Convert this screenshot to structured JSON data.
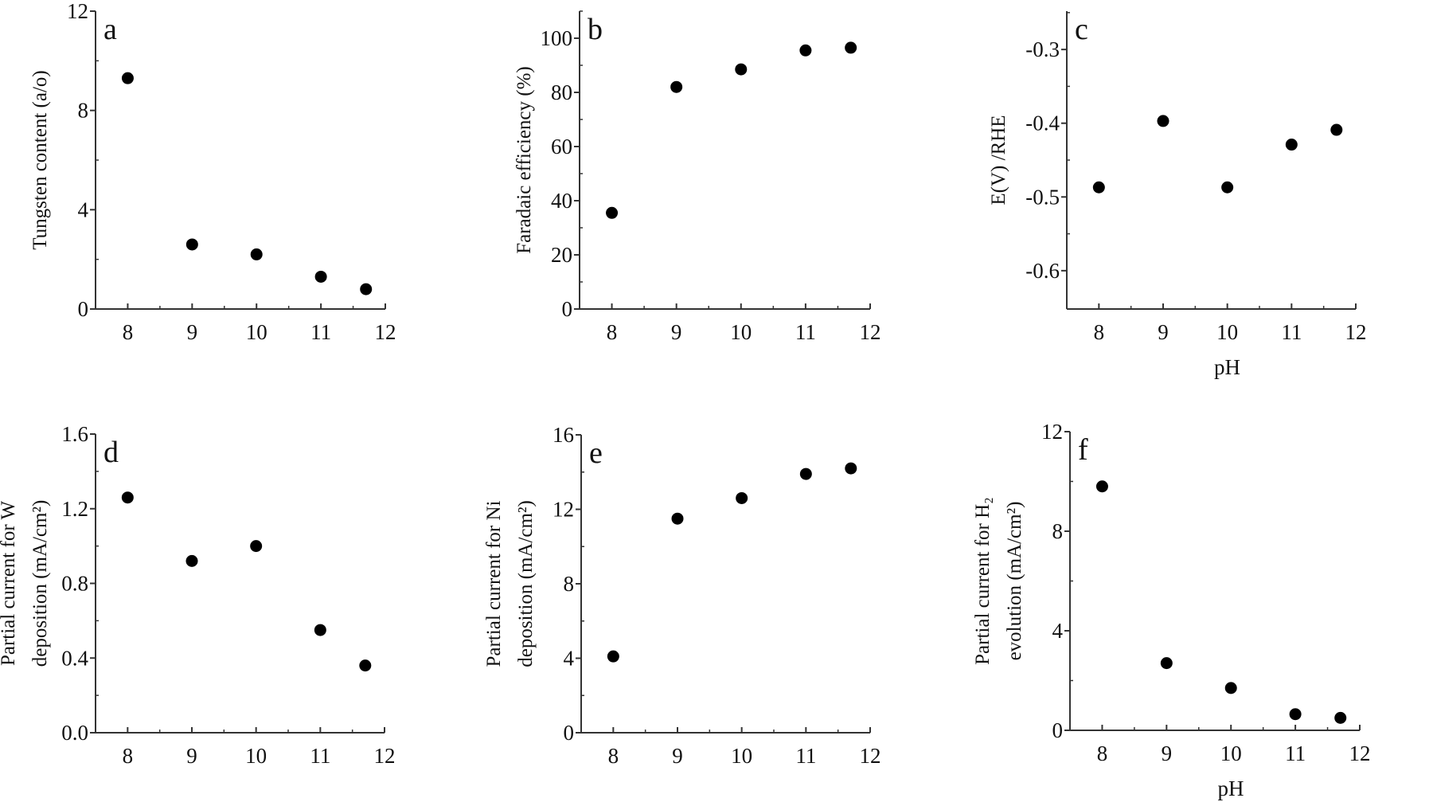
{
  "chart_data": [
    {
      "panel": "a",
      "type": "scatter",
      "xlabel": "",
      "ylabel": [
        "Tungsten content (a/o)"
      ],
      "xlim": [
        7.5,
        12
      ],
      "ylim": [
        0,
        12
      ],
      "xticks": [
        8,
        9,
        10,
        11,
        12
      ],
      "yticks": [
        "0",
        "4",
        "8",
        "12"
      ],
      "ytick_values": [
        0,
        4,
        8,
        12
      ],
      "yminor": 2,
      "x": [
        8,
        9,
        10,
        11,
        11.7
      ],
      "y": [
        9.3,
        2.6,
        2.2,
        1.3,
        0.8
      ]
    },
    {
      "panel": "b",
      "type": "scatter",
      "xlabel": "",
      "ylabel": [
        "Faradaic efficiency (%)"
      ],
      "xlim": [
        7.5,
        12
      ],
      "ylim": [
        0,
        110
      ],
      "xticks": [
        8,
        9,
        10,
        11,
        12
      ],
      "yticks": [
        "0",
        "20",
        "40",
        "60",
        "80",
        "100"
      ],
      "ytick_values": [
        0,
        20,
        40,
        60,
        80,
        100
      ],
      "yminor": 10,
      "x": [
        8,
        9,
        10,
        11,
        11.7
      ],
      "y": [
        35.5,
        82,
        88.5,
        95.5,
        96.5
      ]
    },
    {
      "panel": "c",
      "type": "scatter",
      "xlabel": "pH",
      "ylabel": [
        "E(V)  /RHE"
      ],
      "xlim": [
        7.5,
        12
      ],
      "ylim": [
        -0.652,
        -0.248
      ],
      "xticks": [
        8,
        9,
        10,
        11,
        12
      ],
      "yticks": [
        "-0.6",
        "-0.5",
        "-0.4",
        "-0.3"
      ],
      "ytick_values": [
        -0.6,
        -0.5,
        -0.4,
        -0.3
      ],
      "yminor": 0.05,
      "x": [
        8,
        9,
        10,
        11,
        11.7
      ],
      "y": [
        -0.487,
        -0.397,
        -0.487,
        -0.429,
        -0.409
      ]
    },
    {
      "panel": "d",
      "type": "scatter",
      "xlabel": "",
      "ylabel": [
        "Partial current for W",
        "deposition (mA/cm²)"
      ],
      "xlim": [
        7.5,
        12
      ],
      "ylim": [
        0,
        1.6
      ],
      "xticks": [
        8,
        9,
        10,
        11,
        12
      ],
      "yticks": [
        "0.0",
        "0.4",
        "0.8",
        "1.2",
        "1.6"
      ],
      "ytick_values": [
        0,
        0.4,
        0.8,
        1.2,
        1.6
      ],
      "yminor": 0.2,
      "x": [
        8,
        9,
        10,
        11,
        11.7
      ],
      "y": [
        1.26,
        0.92,
        1.0,
        0.55,
        0.36
      ]
    },
    {
      "panel": "e",
      "type": "scatter",
      "xlabel": "",
      "ylabel": [
        "Partial current for Ni",
        "deposition (mA/cm²)"
      ],
      "xlim": [
        7.5,
        12
      ],
      "ylim": [
        0,
        16
      ],
      "xticks": [
        8,
        9,
        10,
        11,
        12
      ],
      "yticks": [
        "0",
        "4",
        "8",
        "12",
        "16"
      ],
      "ytick_values": [
        0,
        4,
        8,
        12,
        16
      ],
      "yminor": 2,
      "x": [
        8,
        9,
        10,
        11,
        11.7
      ],
      "y": [
        4.1,
        11.5,
        12.6,
        13.9,
        14.2
      ]
    },
    {
      "panel": "f",
      "type": "scatter",
      "xlabel": "pH",
      "ylabel": [
        "Partial current for H₂",
        "evolution (mA/cm²)"
      ],
      "xlim": [
        7.5,
        12
      ],
      "ylim": [
        0,
        12
      ],
      "xticks": [
        8,
        9,
        10,
        11,
        12
      ],
      "yticks": [
        "0",
        "4",
        "8",
        "12"
      ],
      "ytick_values": [
        0,
        4,
        8,
        12
      ],
      "yminor": 2,
      "x": [
        8,
        9,
        10,
        11,
        11.7
      ],
      "y": [
        9.8,
        2.7,
        1.7,
        0.65,
        0.5
      ]
    }
  ],
  "marker_color": "#000000",
  "axis_color": "#333333"
}
